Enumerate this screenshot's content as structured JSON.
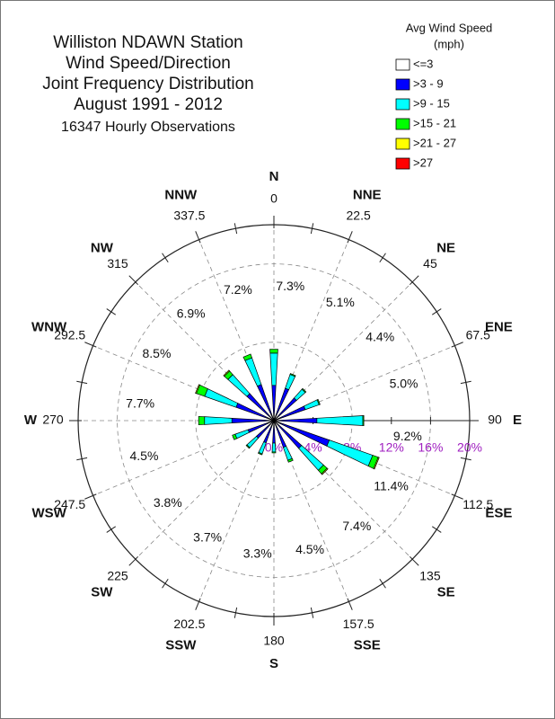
{
  "chart_data": {
    "type": "windrose",
    "title": [
      "Williston NDAWN Station",
      "Wind Speed/Direction",
      "Joint Frequency Distribution",
      "August 1991 - 2012"
    ],
    "subtitle": "16347 Hourly Observations",
    "legend_title": [
      "Avg Wind Speed",
      "(mph)"
    ],
    "directions": [
      "N",
      "NNE",
      "NE",
      "ENE",
      "E",
      "ESE",
      "SE",
      "SSE",
      "S",
      "SSW",
      "SW",
      "WSW",
      "W",
      "WNW",
      "NW",
      "NNW"
    ],
    "angles": [
      0,
      22.5,
      45,
      67.5,
      90,
      112.5,
      135,
      157.5,
      180,
      202.5,
      225,
      247.5,
      270,
      292.5,
      315,
      337.5
    ],
    "totals": [
      7.3,
      5.1,
      4.4,
      5.0,
      9.2,
      11.4,
      7.4,
      4.5,
      3.3,
      3.7,
      3.8,
      4.5,
      7.7,
      8.5,
      6.9,
      7.2
    ],
    "value_labels": [
      "7.3%",
      "5.1%",
      "4.4%",
      "5.0%",
      "9.2%",
      "11.4%",
      "7.4%",
      "4.5%",
      "3.3%",
      "3.7%",
      "3.8%",
      "4.5%",
      "7.7%",
      "8.5%",
      "6.9%",
      "7.2%"
    ],
    "series": [
      {
        "name": "<=3",
        "color": "#ffffff",
        "values": [
          0.1,
          0.1,
          0.1,
          0.1,
          0.1,
          0.1,
          0.1,
          0.1,
          0.1,
          0.1,
          0.1,
          0.1,
          0.1,
          0.1,
          0.1,
          0.1
        ]
      },
      {
        "name": ">3 - 9",
        "color": "#0000ff",
        "values": [
          3.5,
          3.4,
          3.0,
          3.3,
          4.3,
          5.9,
          3.7,
          2.8,
          2.2,
          2.3,
          2.3,
          2.7,
          4.2,
          4.0,
          3.6,
          3.8
        ]
      },
      {
        "name": ">9 - 15",
        "color": "#00ffff",
        "values": [
          3.3,
          1.5,
          1.2,
          1.5,
          4.7,
          4.7,
          3.0,
          1.4,
          0.9,
          1.2,
          1.3,
          1.4,
          2.8,
          3.4,
          2.6,
          2.9
        ]
      },
      {
        "name": ">15 - 21",
        "color": "#00ff00",
        "values": [
          0.4,
          0.1,
          0.1,
          0.1,
          0.1,
          0.6,
          0.5,
          0.2,
          0.1,
          0.1,
          0.1,
          0.3,
          0.6,
          0.9,
          0.5,
          0.4
        ]
      },
      {
        "name": ">21 - 27",
        "color": "#ffff00",
        "values": [
          0,
          0,
          0,
          0,
          0,
          0.1,
          0.1,
          0,
          0,
          0,
          0,
          0,
          0,
          0.1,
          0.1,
          0
        ]
      },
      {
        "name": ">27",
        "color": "#ff0000",
        "values": [
          0,
          0,
          0,
          0,
          0,
          0,
          0,
          0,
          0,
          0,
          0,
          0,
          0,
          0,
          0,
          0
        ]
      }
    ],
    "rlim": [
      0,
      20
    ],
    "rticks": [
      {
        "value": 0,
        "label": "0%"
      },
      {
        "value": 4,
        "label": "4%"
      },
      {
        "value": 8,
        "label": "8%"
      },
      {
        "value": 12,
        "label": "12%"
      },
      {
        "value": 16,
        "label": "16%"
      },
      {
        "value": 20,
        "label": "20%"
      }
    ],
    "rgrid": [
      8,
      16
    ],
    "rtick_color": "#a020c0"
  }
}
